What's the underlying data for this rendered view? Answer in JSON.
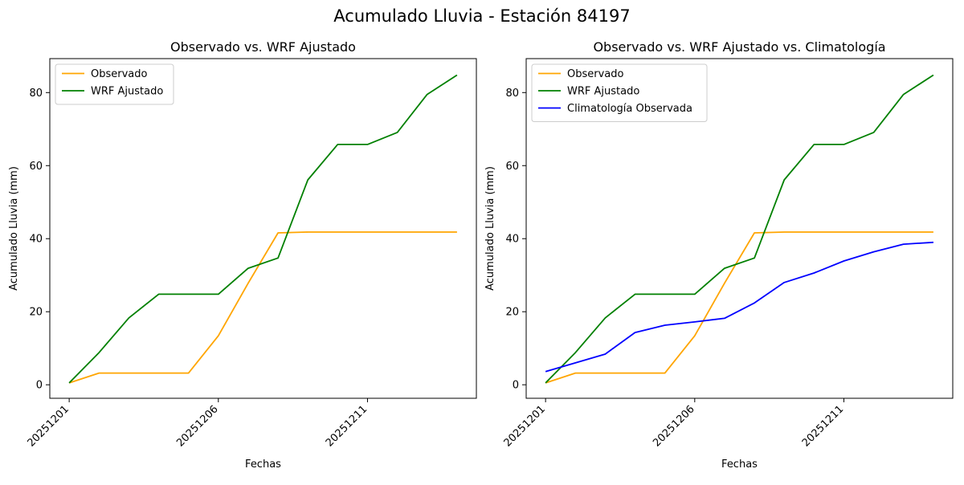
{
  "figure": {
    "suptitle": "Acumulado Lluvia - Estación 84197"
  },
  "chart_data": [
    {
      "type": "line",
      "title": "Observado vs. WRF Ajustado",
      "xlabel": "Fechas",
      "ylabel": "Acumulado Lluvia (mm)",
      "x": [
        "20251201",
        "20251202",
        "20251203",
        "20251204",
        "20251205",
        "20251206",
        "20251207",
        "20251208",
        "20251209",
        "20251210",
        "20251211",
        "20251212",
        "20251213",
        "20251214"
      ],
      "xticks": [
        "20251201",
        "20251206",
        "20251211"
      ],
      "yticks": [
        0,
        20,
        40,
        60,
        80
      ],
      "ylim": [
        -3.7,
        89.3
      ],
      "legend": "top-left",
      "grid": false,
      "series": [
        {
          "name": "Observado",
          "color": "#ffa500",
          "values": [
            0.5,
            3.2,
            3.2,
            3.2,
            3.2,
            13.4,
            27.8,
            41.6,
            41.8,
            41.8,
            41.8,
            41.8,
            41.8,
            41.8
          ]
        },
        {
          "name": "WRF Ajustado",
          "color": "#008000",
          "values": [
            0.5,
            8.8,
            18.3,
            24.8,
            24.8,
            24.8,
            31.9,
            34.7,
            56.1,
            65.8,
            65.8,
            69.1,
            79.5,
            84.8
          ]
        }
      ]
    },
    {
      "type": "line",
      "title": "Observado vs. WRF Ajustado vs. Climatología",
      "xlabel": "Fechas",
      "ylabel": "Acumulado Lluvia (mm)",
      "x": [
        "20251201",
        "20251202",
        "20251203",
        "20251204",
        "20251205",
        "20251206",
        "20251207",
        "20251208",
        "20251209",
        "20251210",
        "20251211",
        "20251212",
        "20251213",
        "20251214"
      ],
      "xticks": [
        "20251201",
        "20251206",
        "20251211"
      ],
      "yticks": [
        0,
        20,
        40,
        60,
        80
      ],
      "ylim": [
        -3.7,
        89.3
      ],
      "legend": "top-left",
      "grid": false,
      "series": [
        {
          "name": "Observado",
          "color": "#ffa500",
          "values": [
            0.5,
            3.2,
            3.2,
            3.2,
            3.2,
            13.4,
            27.8,
            41.6,
            41.8,
            41.8,
            41.8,
            41.8,
            41.8,
            41.8
          ]
        },
        {
          "name": "WRF Ajustado",
          "color": "#008000",
          "values": [
            0.5,
            8.8,
            18.3,
            24.8,
            24.8,
            24.8,
            31.9,
            34.7,
            56.1,
            65.8,
            65.8,
            69.1,
            79.5,
            84.8
          ]
        },
        {
          "name": "Climatología Observada",
          "color": "#0000ff",
          "values": [
            3.6,
            6.0,
            8.4,
            14.3,
            16.3,
            17.2,
            18.2,
            22.4,
            28.0,
            30.6,
            33.9,
            36.4,
            38.5,
            39.0
          ]
        }
      ]
    }
  ]
}
